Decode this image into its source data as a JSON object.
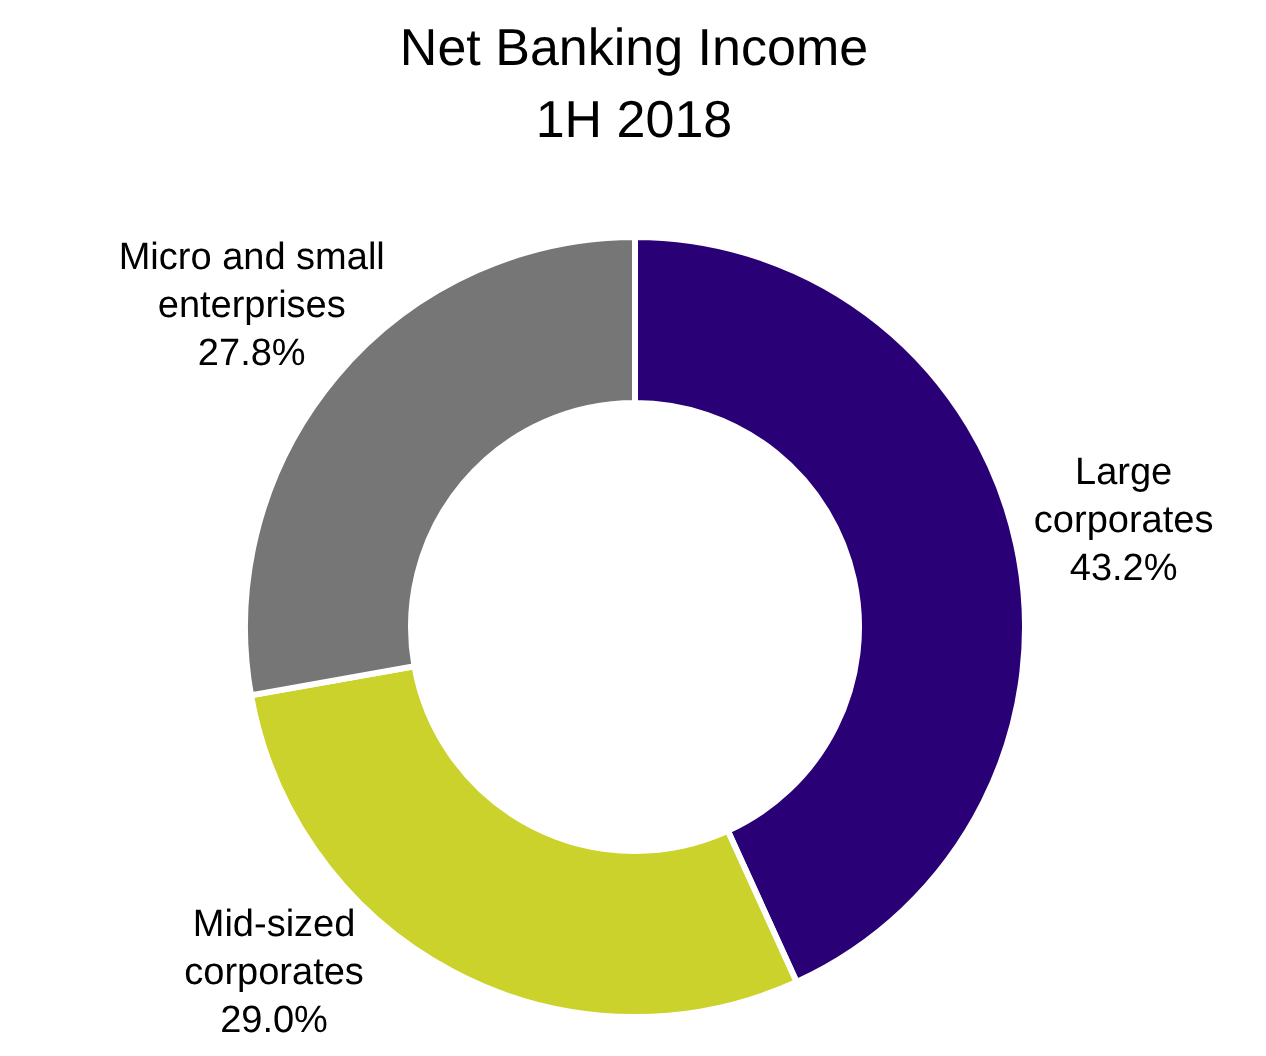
{
  "chart_data": {
    "type": "donut",
    "title": "Net Banking Income\n1H 2018",
    "categories": [
      "Large\ncorporates",
      "Mid-sized\ncorporates",
      "Micro and small\nenterprises"
    ],
    "values": [
      43.2,
      29.0,
      27.8
    ],
    "colors": [
      "#2a0077",
      "#cbd22b",
      "#767676"
    ],
    "value_labels": [
      "43.2%",
      "29.0%",
      "27.8%"
    ]
  }
}
